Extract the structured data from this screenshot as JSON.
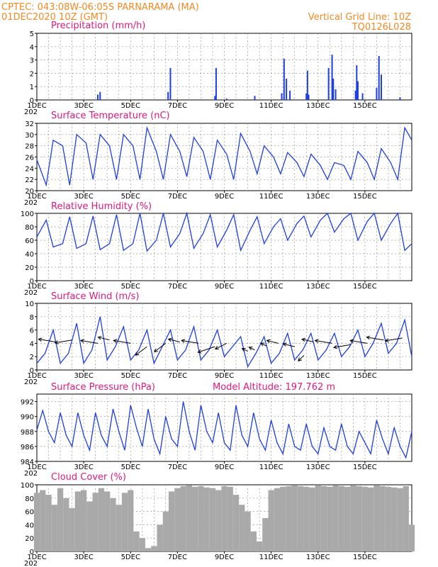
{
  "header": {
    "line1_left": "CPTEC:   043:08W-06:05S   PARNARAMA (MA)",
    "line2_left": "01DEC2020 10Z (GMT)",
    "line1_right": "Vertical Grid Line: 10Z",
    "line2_right": "TQ0126L028"
  },
  "colors": {
    "series": "#1f3fe0",
    "header": "#f08a24",
    "title": "#e0197d",
    "cloud": "#a9a9a9",
    "grid": "#9a9a9a"
  },
  "x_axis": {
    "tick_labels": [
      "1DEC",
      "3DEC",
      "5DEC",
      "7DEC",
      "9DEC",
      "11DEC",
      "13DEC",
      "15DEC"
    ],
    "cut_label": "202"
  },
  "chart_data": [
    {
      "type": "bar",
      "title": "Precipitation (mm/h)",
      "ylim": [
        0,
        5
      ],
      "yticks": [
        0,
        1,
        2,
        3,
        4,
        5
      ],
      "grid": true,
      "x": [
        2.6,
        2.7,
        5.6,
        5.7,
        7.6,
        7.65,
        8.1,
        9.3,
        10.45,
        10.55,
        10.65,
        10.8,
        11.5,
        11.55,
        11.6,
        12.45,
        12.6,
        12.65,
        12.75,
        13.6,
        13.65,
        13.7,
        13.9,
        14.5,
        14.6,
        14.7,
        15.5
      ],
      "values": [
        0.4,
        0.6,
        0.6,
        2.4,
        0.3,
        2.4,
        0.1,
        0.3,
        0.5,
        3.1,
        1.6,
        0.7,
        0.5,
        2.2,
        0.4,
        2.4,
        3.4,
        1.6,
        0.8,
        0.7,
        2.6,
        1.4,
        0.5,
        0.9,
        3.3,
        1.9,
        0.2
      ]
    },
    {
      "type": "line",
      "title": "Surface Temperature (nC)",
      "ylim": [
        20,
        32
      ],
      "yticks": [
        20,
        22,
        24,
        26,
        28,
        30,
        32
      ],
      "grid": true,
      "x": [
        0.0,
        0.4,
        0.7,
        1.1,
        1.4,
        1.7,
        2.1,
        2.4,
        2.7,
        3.1,
        3.4,
        3.7,
        4.1,
        4.4,
        4.7,
        5.1,
        5.4,
        5.7,
        6.1,
        6.4,
        6.7,
        7.1,
        7.4,
        7.7,
        8.1,
        8.4,
        8.7,
        9.1,
        9.4,
        9.7,
        10.1,
        10.4,
        10.7,
        11.1,
        11.4,
        11.7,
        12.1,
        12.4,
        12.7,
        13.1,
        13.4,
        13.7,
        14.1,
        14.4,
        14.7,
        15.1,
        15.4,
        15.7,
        16.0
      ],
      "values": [
        25.5,
        21.0,
        29.0,
        28.0,
        21.0,
        30.0,
        28.5,
        22.0,
        30.0,
        28.0,
        22.0,
        30.0,
        28.0,
        22.0,
        31.2,
        27.0,
        22.0,
        30.0,
        27.0,
        22.5,
        29.5,
        27.0,
        22.0,
        29.0,
        26.5,
        22.0,
        30.2,
        27.0,
        23.0,
        28.0,
        26.0,
        23.0,
        26.8,
        25.0,
        22.5,
        26.5,
        24.5,
        22.0,
        25.0,
        24.5,
        22.0,
        27.0,
        25.0,
        22.0,
        27.5,
        25.0,
        22.0,
        31.2,
        29.0
      ]
    },
    {
      "type": "line",
      "title": "Relative Humidity (%)",
      "ylim": [
        0,
        100
      ],
      "yticks": [
        0,
        20,
        40,
        60,
        80,
        100
      ],
      "grid": true,
      "x": [
        0.0,
        0.4,
        0.7,
        1.1,
        1.4,
        1.7,
        2.1,
        2.4,
        2.7,
        3.1,
        3.4,
        3.7,
        4.1,
        4.4,
        4.7,
        5.1,
        5.4,
        5.7,
        6.1,
        6.4,
        6.7,
        7.1,
        7.4,
        7.7,
        8.1,
        8.4,
        8.7,
        9.1,
        9.4,
        9.7,
        10.1,
        10.4,
        10.7,
        11.1,
        11.4,
        11.7,
        12.1,
        12.4,
        12.7,
        13.1,
        13.4,
        13.7,
        14.1,
        14.4,
        14.7,
        15.1,
        15.4,
        15.7,
        16.0
      ],
      "values": [
        65,
        90,
        50,
        55,
        95,
        48,
        55,
        96,
        46,
        55,
        98,
        45,
        55,
        100,
        44,
        60,
        100,
        50,
        70,
        100,
        48,
        70,
        98,
        50,
        75,
        98,
        45,
        75,
        95,
        55,
        80,
        92,
        60,
        85,
        96,
        65,
        90,
        100,
        72,
        92,
        100,
        60,
        88,
        100,
        60,
        85,
        100,
        45,
        55
      ]
    },
    {
      "type": "line",
      "title": "Surface Wind (m/s)",
      "ylim": [
        0,
        10
      ],
      "yticks": [
        0,
        2,
        4,
        6,
        8,
        10
      ],
      "grid": true,
      "x": [
        0.0,
        0.35,
        0.7,
        1.0,
        1.35,
        1.7,
        2.0,
        2.35,
        2.7,
        3.0,
        3.35,
        3.7,
        4.0,
        4.35,
        4.7,
        5.0,
        5.35,
        5.7,
        6.0,
        6.35,
        6.7,
        7.0,
        7.35,
        7.7,
        8.0,
        8.35,
        8.7,
        9.0,
        9.35,
        9.7,
        10.0,
        10.35,
        10.7,
        11.0,
        11.35,
        11.7,
        12.0,
        12.35,
        12.7,
        13.0,
        13.35,
        13.7,
        14.0,
        14.35,
        14.7,
        15.0,
        15.35,
        15.7,
        16.0
      ],
      "values": [
        1.0,
        2.5,
        6.0,
        1.0,
        2.5,
        7.0,
        1.0,
        3.0,
        8.0,
        1.5,
        3.5,
        6.5,
        1.5,
        3.0,
        6.0,
        1.0,
        3.5,
        6.0,
        1.5,
        3.0,
        6.5,
        1.5,
        3.0,
        6.0,
        2.0,
        3.5,
        5.0,
        0.5,
        2.5,
        5.0,
        1.0,
        2.5,
        5.5,
        1.5,
        3.0,
        5.5,
        1.5,
        3.0,
        5.5,
        2.0,
        3.5,
        6.0,
        2.0,
        4.0,
        7.0,
        2.5,
        4.0,
        7.5,
        2.0
      ],
      "vectors": {
        "x": [
          0.8,
          1.5,
          2.6,
          3.1,
          4.0,
          4.7,
          5.5,
          6.1,
          6.9,
          7.6,
          8.1,
          9.0,
          9.3,
          9.8,
          10.3,
          11.0,
          11.4,
          11.8,
          12.6,
          13.4,
          14.1,
          14.8,
          15.6
        ],
        "u": [
          -3,
          -3,
          -3,
          -2,
          -3,
          -2,
          -2,
          -2,
          -3,
          -3,
          -2,
          -1,
          -1,
          -1,
          -2,
          -2,
          -1,
          -2,
          -3,
          -3,
          -3,
          -3,
          -3
        ],
        "v": [
          0.5,
          -0.5,
          0.5,
          0.5,
          0.5,
          -1.5,
          -1.5,
          0.5,
          0.5,
          -1.0,
          -1.0,
          0.5,
          0.5,
          0.5,
          0.5,
          0.5,
          -1.0,
          0.5,
          0.5,
          -0.5,
          0.5,
          0.5,
          -0.5
        ],
        "y": [
          4.2,
          4.5,
          4.0,
          4.5,
          4.0,
          3.5,
          4.0,
          4.2,
          4.0,
          3.5,
          4.0,
          2.8,
          3.0,
          3.6,
          4.0,
          3.5,
          2.2,
          4.2,
          4.0,
          3.8,
          4.0,
          4.5,
          4.8
        ]
      }
    },
    {
      "type": "line",
      "title": "Surface Pressure (hPa)",
      "annotation": "Model Altitude: 197.762 m",
      "ylim": [
        984,
        993
      ],
      "yticks": [
        984,
        986,
        988,
        990,
        992
      ],
      "grid": true,
      "x": [
        0.0,
        0.25,
        0.5,
        0.75,
        1.0,
        1.25,
        1.5,
        1.75,
        2.0,
        2.25,
        2.5,
        2.75,
        3.0,
        3.25,
        3.5,
        3.75,
        4.0,
        4.25,
        4.5,
        4.75,
        5.0,
        5.25,
        5.5,
        5.75,
        6.0,
        6.25,
        6.5,
        6.75,
        7.0,
        7.25,
        7.5,
        7.75,
        8.0,
        8.25,
        8.5,
        8.75,
        9.0,
        9.25,
        9.5,
        9.75,
        10.0,
        10.25,
        10.5,
        10.75,
        11.0,
        11.25,
        11.5,
        11.75,
        12.0,
        12.25,
        12.5,
        12.75,
        13.0,
        13.25,
        13.5,
        13.75,
        14.0,
        14.25,
        14.5,
        14.75,
        15.0,
        15.25,
        15.5,
        15.75,
        16.0
      ],
      "values": [
        988.2,
        990.8,
        988.0,
        986.5,
        990.5,
        987.5,
        986.0,
        990.5,
        987.5,
        985.5,
        990.5,
        987.5,
        986.0,
        991.0,
        988.0,
        985.5,
        991.5,
        988.5,
        986.0,
        991.0,
        987.0,
        985.0,
        990.0,
        987.0,
        986.0,
        992.0,
        988.0,
        985.5,
        991.5,
        988.0,
        986.5,
        990.5,
        986.5,
        985.5,
        991.5,
        987.5,
        986.0,
        990.5,
        987.0,
        985.5,
        989.5,
        986.5,
        985.0,
        989.0,
        986.0,
        985.5,
        989.0,
        986.0,
        985.0,
        988.5,
        986.0,
        985.5,
        989.0,
        986.0,
        985.0,
        988.0,
        986.5,
        985.0,
        989.5,
        987.0,
        985.0,
        988.5,
        986.0,
        984.5,
        988.0
      ]
    },
    {
      "type": "bar",
      "title": "Cloud Cover (%)",
      "ylim": [
        0,
        100
      ],
      "yticks": [
        0,
        20,
        40,
        60,
        80,
        100
      ],
      "grid": true,
      "x": [
        0.0,
        0.25,
        0.5,
        0.75,
        1.0,
        1.25,
        1.5,
        1.75,
        2.0,
        2.25,
        2.5,
        2.75,
        3.0,
        3.25,
        3.5,
        3.75,
        4.0,
        4.25,
        4.5,
        4.75,
        5.0,
        5.25,
        5.5,
        5.75,
        6.0,
        6.25,
        6.5,
        6.75,
        7.0,
        7.25,
        7.5,
        7.75,
        8.0,
        8.25,
        8.5,
        8.75,
        9.0,
        9.25,
        9.5,
        9.75,
        10.0,
        10.25,
        10.5,
        10.75,
        11.0,
        11.25,
        11.5,
        11.75,
        12.0,
        12.25,
        12.5,
        12.75,
        13.0,
        13.25,
        13.5,
        13.75,
        14.0,
        14.25,
        14.5,
        14.75,
        15.0,
        15.25,
        15.5,
        15.75,
        16.0
      ],
      "values": [
        88,
        92,
        85,
        70,
        95,
        80,
        65,
        90,
        92,
        75,
        88,
        95,
        90,
        80,
        70,
        88,
        92,
        30,
        20,
        5,
        8,
        40,
        60,
        90,
        95,
        98,
        99,
        97,
        98,
        96,
        95,
        92,
        98,
        97,
        85,
        70,
        60,
        30,
        15,
        50,
        92,
        95,
        97,
        98,
        99,
        98,
        97,
        96,
        99,
        98,
        97,
        99,
        98,
        97,
        99,
        98,
        97,
        96,
        99,
        98,
        97,
        96,
        95,
        98,
        40
      ]
    }
  ]
}
